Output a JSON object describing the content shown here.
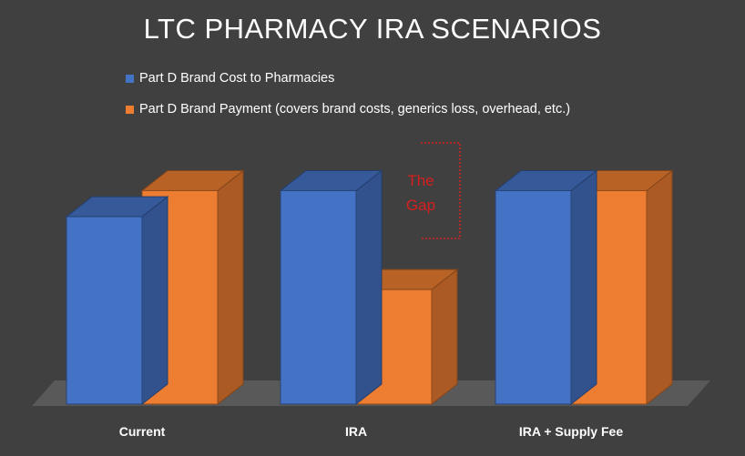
{
  "chart_data": {
    "type": "bar",
    "title": "LTC PHARMACY IRA SCENARIOS",
    "categories": [
      "Current",
      "IRA",
      "IRA + Supply Fee"
    ],
    "series": [
      {
        "name": "Part D Brand Cost to Pharmacies",
        "values": [
          72,
          82,
          82
        ],
        "color": "#4472c4"
      },
      {
        "name": "Part D Brand Payment (covers brand costs, generics loss, overhead, etc.)",
        "values": [
          82,
          44,
          82
        ],
        "color": "#ed7d31"
      }
    ],
    "annotation": {
      "lines": [
        "The",
        "Gap"
      ],
      "color": "#d81f1f"
    },
    "ylim": [
      0,
      100
    ],
    "xlabel": "",
    "ylabel": ""
  }
}
